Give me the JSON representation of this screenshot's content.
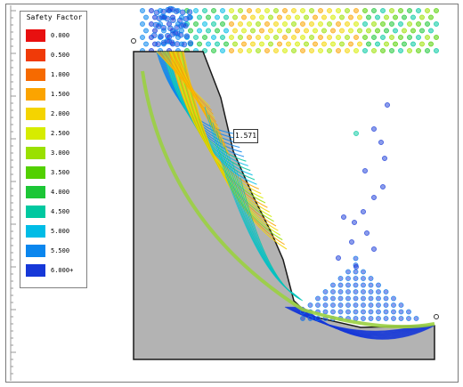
{
  "legend": {
    "title": "Safety Factor",
    "items": [
      {
        "label": "0.000",
        "color": "#e81010"
      },
      {
        "label": "0.500",
        "color": "#f03a08"
      },
      {
        "label": "1.000",
        "color": "#f66a00"
      },
      {
        "label": "1.500",
        "color": "#fba400"
      },
      {
        "label": "2.000",
        "color": "#f4d400"
      },
      {
        "label": "2.500",
        "color": "#d6ec00"
      },
      {
        "label": "3.000",
        "color": "#9ae000"
      },
      {
        "label": "3.500",
        "color": "#52d000"
      },
      {
        "label": "4.000",
        "color": "#1cc636"
      },
      {
        "label": "4.500",
        "color": "#00c8a0"
      },
      {
        "label": "5.000",
        "color": "#00bce6"
      },
      {
        "label": "5.500",
        "color": "#0a86ee"
      },
      {
        "label": "6.000+",
        "color": "#1638d8"
      }
    ]
  },
  "callout": {
    "label": "1.571"
  },
  "colors": {
    "slope_fill": "#b3b3b3",
    "slope_outline": "#1a1a1a",
    "critical_surface": "#9ad040",
    "grid_low": "#1a3ce8",
    "grid_high": "#f2e400"
  },
  "icons": [
    "slope-profile",
    "slip-surface",
    "search-grid"
  ]
}
